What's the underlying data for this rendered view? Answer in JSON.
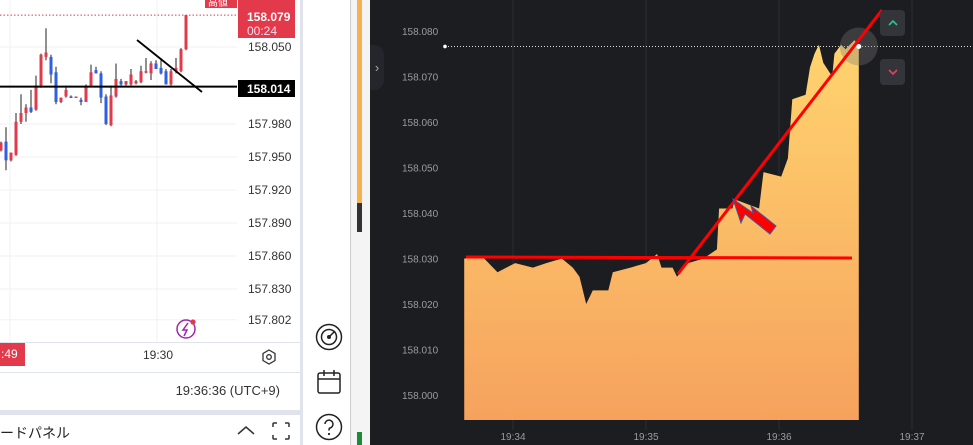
{
  "left_chart": {
    "price_ticks": [
      "158.050",
      "157.980",
      "157.950",
      "157.920",
      "157.890",
      "157.860",
      "157.830",
      "157.802"
    ],
    "high_label": "高値",
    "current_price": "158.079",
    "countdown": "00:24",
    "line_price": "158.014",
    "time_tick": "19:30",
    "left_time_badge": ":49",
    "clock": "19:36:36 (UTC+9)",
    "panel_title": "ードパネル",
    "colors": {
      "up": "#e23a4a",
      "down": "#2f5fe3"
    },
    "candles": [
      [
        157.956,
        157.964,
        157.955,
        157.963
      ],
      [
        157.964,
        157.977,
        157.938,
        157.947
      ],
      [
        157.947,
        157.954,
        157.946,
        157.954
      ],
      [
        157.952,
        157.99,
        157.951,
        157.982
      ],
      [
        157.982,
        158.007,
        157.98,
        157.99
      ],
      [
        157.99,
        157.998,
        157.982,
        157.995
      ],
      [
        157.995,
        158.011,
        157.99,
        157.991
      ],
      [
        157.993,
        158.024,
        157.992,
        158.015
      ],
      [
        158.015,
        158.044,
        158.013,
        158.043
      ],
      [
        158.041,
        158.067,
        158.038,
        158.045
      ],
      [
        158.041,
        158.043,
        158.017,
        158.025
      ],
      [
        158.027,
        158.032,
        157.998,
        158.0
      ],
      [
        158.0,
        158.004,
        157.999,
        158.004
      ],
      [
        158.005,
        158.015,
        158.004,
        158.011
      ],
      [
        158.005,
        158.006,
        158.004,
        158.004
      ],
      [
        158.004,
        158.005,
        158.004,
        158.005
      ],
      [
        158.002,
        158.004,
        157.997,
        158.0
      ],
      [
        158.0,
        158.016,
        158.0,
        158.015
      ],
      [
        158.015,
        158.034,
        158.014,
        158.027
      ],
      [
        158.029,
        158.032,
        158.026,
        158.026
      ],
      [
        158.026,
        158.028,
        157.999,
        158.004
      ],
      [
        158.005,
        158.007,
        157.979,
        157.98
      ],
      [
        157.979,
        158.015,
        157.978,
        158.006
      ],
      [
        158.005,
        158.035,
        158.004,
        158.021
      ],
      [
        158.019,
        158.021,
        158.015,
        158.016
      ],
      [
        158.016,
        158.019,
        158.015,
        158.019
      ],
      [
        158.016,
        158.03,
        158.015,
        158.025
      ],
      [
        158.017,
        158.02,
        158.016,
        158.019
      ],
      [
        158.018,
        158.033,
        158.017,
        158.028
      ],
      [
        158.027,
        158.04,
        158.026,
        158.028
      ],
      [
        158.026,
        158.037,
        158.02,
        158.035
      ],
      [
        158.035,
        158.038,
        158.03,
        158.03
      ],
      [
        158.031,
        158.04,
        158.025,
        158.026
      ],
      [
        158.028,
        158.03,
        158.016,
        158.016
      ],
      [
        158.016,
        158.03,
        158.015,
        158.028
      ],
      [
        158.028,
        158.04,
        158.026,
        158.031
      ],
      [
        158.028,
        158.049,
        158.027,
        158.048
      ],
      [
        158.048,
        158.079,
        158.047,
        158.079
      ]
    ]
  },
  "chart_data": {
    "type": "area",
    "y_ticks": [
      "158.080",
      "158.070",
      "158.060",
      "158.050",
      "158.040",
      "158.030",
      "158.020",
      "158.010",
      "158.000"
    ],
    "x_ticks": [
      "19:34",
      "19:35",
      "19:36",
      "19:37"
    ],
    "ylim": [
      157.997,
      158.0835
    ],
    "xlim": [
      "19:33:17",
      "19:37:12"
    ],
    "fill_colors": [
      "#ffd46e",
      "#f6a25e"
    ],
    "current_price": 158.0766,
    "points": [
      [
        "19:33:38",
        158.03
      ],
      [
        "19:33:47",
        158.03
      ],
      [
        "19:33:53",
        158.027
      ],
      [
        "19:34:01",
        158.029
      ],
      [
        "19:34:09",
        158.028
      ],
      [
        "19:34:15",
        158.029
      ],
      [
        "19:34:22",
        158.03
      ],
      [
        "19:34:27",
        158.028
      ],
      [
        "19:34:30",
        158.026
      ],
      [
        "19:34:33",
        158.02
      ],
      [
        "19:34:36",
        158.023
      ],
      [
        "19:34:43",
        158.023
      ],
      [
        "19:34:45",
        158.027
      ],
      [
        "19:34:53",
        158.028
      ],
      [
        "19:35:00",
        158.029
      ],
      [
        "19:35:05",
        158.031
      ],
      [
        "19:35:07",
        158.028
      ],
      [
        "19:35:12",
        158.028
      ],
      [
        "19:35:14",
        158.026
      ],
      [
        "19:35:19",
        158.029
      ],
      [
        "19:35:26",
        158.03
      ],
      [
        "19:35:32",
        158.032
      ],
      [
        "19:35:33",
        158.041
      ],
      [
        "19:35:39",
        158.041
      ],
      [
        "19:35:40",
        158.043
      ],
      [
        "19:35:51",
        158.041
      ],
      [
        "19:35:53",
        158.049
      ],
      [
        "19:36:01",
        158.048
      ],
      [
        "19:36:04",
        158.052
      ],
      [
        "19:36:06",
        158.065
      ],
      [
        "19:36:12",
        158.066
      ],
      [
        "19:36:14",
        158.072
      ],
      [
        "19:36:16",
        158.075
      ],
      [
        "19:36:18",
        158.077
      ],
      [
        "19:36:20",
        158.073
      ],
      [
        "19:36:24",
        158.07
      ],
      [
        "19:36:25",
        158.075
      ],
      [
        "19:36:28",
        158.077
      ],
      [
        "19:36:30",
        158.076
      ],
      [
        "19:36:34",
        158.078
      ],
      [
        "19:36:36",
        158.0766
      ]
    ]
  },
  "buttons": {
    "up_color": "#2ec28f",
    "down_color": "#e8415b"
  }
}
